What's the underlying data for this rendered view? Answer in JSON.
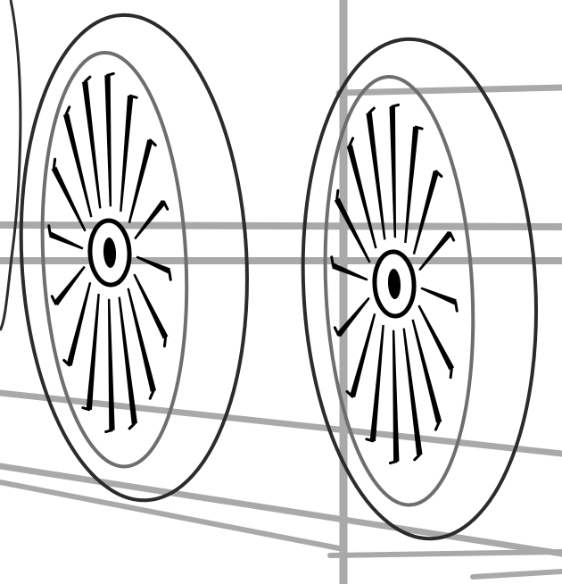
{
  "drawing": {
    "wheel_count": 2,
    "spokes_per_wheel": 16,
    "colors": {
      "background": "#ffffff",
      "outline": "#2b2b2b",
      "rim": "#6e6e6e",
      "frame": "#a9a9a9",
      "ink": "#000000"
    }
  }
}
